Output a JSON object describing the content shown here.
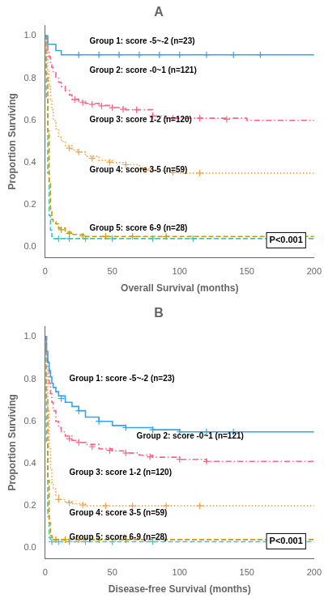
{
  "chart_data": [
    {
      "type": "step",
      "title": "A",
      "xlabel": "Overall Survival (months)",
      "ylabel": "Proportion Surviving",
      "xlim": [
        0,
        200
      ],
      "ylim": [
        -0.05,
        1.05
      ],
      "xticks": [
        0,
        50,
        100,
        150,
        200
      ],
      "yticks": [
        {
          "value": 0,
          "label": "0.0"
        },
        0.2,
        0.4,
        0.6,
        0.8,
        {
          "value": 1,
          "label": "1.0"
        }
      ],
      "grid": false,
      "series": [
        {
          "x": [
            0,
            1,
            2,
            3,
            5,
            8,
            12,
            20,
            200
          ],
          "values": [
            1.0,
            1.0,
            0.96,
            0.96,
            0.96,
            0.93,
            0.91,
            0.91,
            0.91
          ],
          "line_style": "solid",
          "marker": "plus",
          "censor_x": [
            25,
            40,
            55,
            70,
            85,
            100,
            120,
            140,
            160
          ],
          "censor_values": [
            0.91,
            0.91,
            0.91,
            0.91,
            0.91,
            0.91,
            0.91,
            0.91,
            0.91
          ]
        },
        {
          "x": [
            0,
            1,
            2,
            3,
            4,
            5,
            6,
            8,
            10,
            12,
            15,
            18,
            20,
            25,
            30,
            40,
            50,
            60,
            70,
            80,
            90,
            100,
            120,
            150,
            200
          ],
          "values": [
            1.0,
            0.97,
            0.93,
            0.9,
            0.87,
            0.85,
            0.83,
            0.8,
            0.78,
            0.76,
            0.74,
            0.72,
            0.7,
            0.69,
            0.68,
            0.67,
            0.66,
            0.65,
            0.65,
            0.62,
            0.61,
            0.61,
            0.61,
            0.6,
            0.6
          ],
          "line_style": "dashdot",
          "marker": "plus",
          "censor_x": [
            22,
            28,
            35,
            42,
            50,
            58,
            68,
            80,
            95,
            115,
            135
          ],
          "censor_values": [
            0.698,
            0.684,
            0.675,
            0.668,
            0.66,
            0.652,
            0.65,
            0.62,
            0.61,
            0.61,
            0.605
          ]
        },
        {
          "x": [
            0,
            1,
            2,
            3,
            4,
            5,
            6,
            8,
            10,
            12,
            15,
            20,
            25,
            30,
            40,
            50,
            60,
            70,
            80,
            100,
            120,
            150,
            200
          ],
          "values": [
            1.0,
            0.93,
            0.84,
            0.76,
            0.7,
            0.65,
            0.6,
            0.56,
            0.52,
            0.5,
            0.48,
            0.46,
            0.45,
            0.43,
            0.41,
            0.4,
            0.39,
            0.37,
            0.36,
            0.35,
            0.35,
            0.35,
            0.35
          ],
          "line_style": "dotted",
          "marker": "plus",
          "censor_x": [
            18,
            25,
            35,
            48,
            60,
            75,
            95,
            115
          ],
          "censor_values": [
            0.468,
            0.45,
            0.42,
            0.402,
            0.39,
            0.365,
            0.3525,
            0.35
          ]
        },
        {
          "x": [
            0,
            1,
            2,
            3,
            4,
            5,
            6,
            8,
            10,
            15,
            20,
            30,
            50,
            80,
            150,
            200
          ],
          "values": [
            1.0,
            0.82,
            0.55,
            0.3,
            0.18,
            0.13,
            0.12,
            0.11,
            0.09,
            0.07,
            0.06,
            0.05,
            0.05,
            0.05,
            0.05,
            0.05
          ],
          "line_style": "dashed",
          "marker": "plus",
          "censor_x": [
            12,
            18,
            28,
            45,
            65,
            90
          ],
          "censor_values": [
            0.082,
            0.064,
            0.052,
            0.05,
            0.05,
            0.05
          ]
        },
        {
          "x": [
            0,
            1,
            2,
            3,
            4,
            5,
            6,
            8,
            10,
            20,
            50,
            100,
            150,
            200
          ],
          "values": [
            1.0,
            0.7,
            0.35,
            0.15,
            0.08,
            0.05,
            0.04,
            0.04,
            0.04,
            0.04,
            0.04,
            0.04,
            0.04,
            0.04
          ],
          "line_style": "dashed",
          "marker": "plus",
          "censor_x": [
            10,
            18,
            30,
            50,
            80,
            110
          ],
          "censor_values": [
            0.04,
            0.04,
            0.04,
            0.04,
            0.04,
            0.04
          ]
        }
      ],
      "annotations": [
        {
          "text": "Group 1: score -5~-2 (n=23)",
          "x": 33,
          "y": 0.975
        },
        {
          "text": "Group 2: score -0~1 (n=121)",
          "x": 33,
          "y": 0.835
        },
        {
          "text": "Group 3: score 1-2 (n=120)",
          "x": 33,
          "y": 0.6
        },
        {
          "text": "Group 4: score 3-5 (n=59)",
          "x": 33,
          "y": 0.365
        },
        {
          "text": "Group 5: score 6-9 (n=28)",
          "x": 33,
          "y": 0.09
        }
      ],
      "pvalue_text": "P<0.001"
    },
    {
      "type": "step",
      "title": "B",
      "xlabel": "Disease-free Survival (months)",
      "ylabel": "Proportion Surviving",
      "xlim": [
        0,
        200
      ],
      "ylim": [
        -0.05,
        1.05
      ],
      "xticks": [
        0,
        50,
        100,
        150,
        200
      ],
      "yticks": [
        {
          "value": 0,
          "label": "0.0"
        },
        0.2,
        0.4,
        0.6,
        0.8,
        {
          "value": 1,
          "label": "1.0"
        }
      ],
      "grid": false,
      "series": [
        {
          "x": [
            0,
            1,
            2,
            3,
            4,
            5,
            6,
            8,
            10,
            15,
            20,
            25,
            30,
            40,
            50,
            60,
            80,
            100,
            120,
            150,
            200
          ],
          "values": [
            1.0,
            0.93,
            0.88,
            0.84,
            0.81,
            0.78,
            0.76,
            0.74,
            0.72,
            0.69,
            0.67,
            0.65,
            0.62,
            0.6,
            0.58,
            0.57,
            0.56,
            0.55,
            0.55,
            0.55,
            0.55
          ],
          "line_style": "solid",
          "marker": "plus",
          "censor_x": [
            12,
            25,
            40,
            60,
            80,
            100,
            120,
            140
          ],
          "censor_values": [
            0.708,
            0.65,
            0.6,
            0.57,
            0.56,
            0.55,
            0.55,
            0.55
          ]
        },
        {
          "x": [
            0,
            1,
            2,
            3,
            4,
            5,
            6,
            8,
            10,
            12,
            15,
            20,
            25,
            30,
            40,
            50,
            60,
            70,
            80,
            100,
            120,
            150,
            200
          ],
          "values": [
            1.0,
            0.93,
            0.86,
            0.78,
            0.73,
            0.69,
            0.65,
            0.6,
            0.57,
            0.55,
            0.53,
            0.51,
            0.5,
            0.49,
            0.47,
            0.46,
            0.45,
            0.44,
            0.43,
            0.42,
            0.41,
            0.41,
            0.41
          ],
          "line_style": "dashdot",
          "marker": "plus",
          "censor_x": [
            18,
            25,
            35,
            48,
            60,
            78,
            100,
            120
          ],
          "censor_values": [
            0.518,
            0.5,
            0.48,
            0.462,
            0.45,
            0.432,
            0.42,
            0.41
          ]
        },
        {
          "x": [
            0,
            1,
            2,
            3,
            4,
            5,
            6,
            8,
            10,
            15,
            20,
            25,
            30,
            50,
            80,
            100,
            150,
            200
          ],
          "values": [
            1.0,
            0.85,
            0.65,
            0.47,
            0.37,
            0.31,
            0.28,
            0.25,
            0.23,
            0.22,
            0.21,
            0.21,
            0.2,
            0.2,
            0.2,
            0.2,
            0.2,
            0.2
          ],
          "line_style": "dotted",
          "marker": "plus",
          "censor_x": [
            10,
            18,
            28,
            45,
            65,
            90,
            115
          ],
          "censor_values": [
            0.23,
            0.214,
            0.204,
            0.2,
            0.2,
            0.2,
            0.2
          ]
        },
        {
          "x": [
            0,
            1,
            2,
            3,
            4,
            5,
            6,
            8,
            10,
            20,
            50,
            100,
            150,
            200
          ],
          "values": [
            1.0,
            0.7,
            0.32,
            0.12,
            0.06,
            0.05,
            0.04,
            0.04,
            0.04,
            0.04,
            0.04,
            0.04,
            0.04,
            0.04
          ],
          "line_style": "dashed",
          "marker": "plus",
          "censor_x": [
            8,
            15,
            25,
            40,
            60
          ],
          "censor_values": [
            0.04,
            0.04,
            0.04,
            0.04,
            0.04
          ]
        },
        {
          "x": [
            0,
            1,
            2,
            3,
            4,
            5,
            6,
            8,
            10,
            20,
            50,
            100,
            150,
            200
          ],
          "values": [
            1.0,
            0.5,
            0.15,
            0.05,
            0.03,
            0.03,
            0.03,
            0.03,
            0.03,
            0.03,
            0.03,
            0.03,
            0.03,
            0.03
          ],
          "line_style": "dashed",
          "marker": "plus",
          "censor_x": [
            5,
            10,
            18,
            30,
            50,
            80
          ],
          "censor_values": [
            0.03,
            0.03,
            0.03,
            0.03,
            0.03,
            0.03
          ]
        }
      ],
      "annotations": [
        {
          "text": "Group 1: score -5~-2 (n=23)",
          "x": 18,
          "y": 0.8
        },
        {
          "text": "Group 2: score -0~1 (n=121)",
          "x": 68,
          "y": 0.53
        },
        {
          "text": "Group 3: score 1-2 (n=120)",
          "x": 18,
          "y": 0.355
        },
        {
          "text": "Group 4: score 3-5 (n=59)",
          "x": 18,
          "y": 0.165
        },
        {
          "text": "Group 5: score 6-9 (n=28)",
          "x": 18,
          "y": 0.05
        }
      ],
      "pvalue_text": "P<0.001"
    }
  ]
}
